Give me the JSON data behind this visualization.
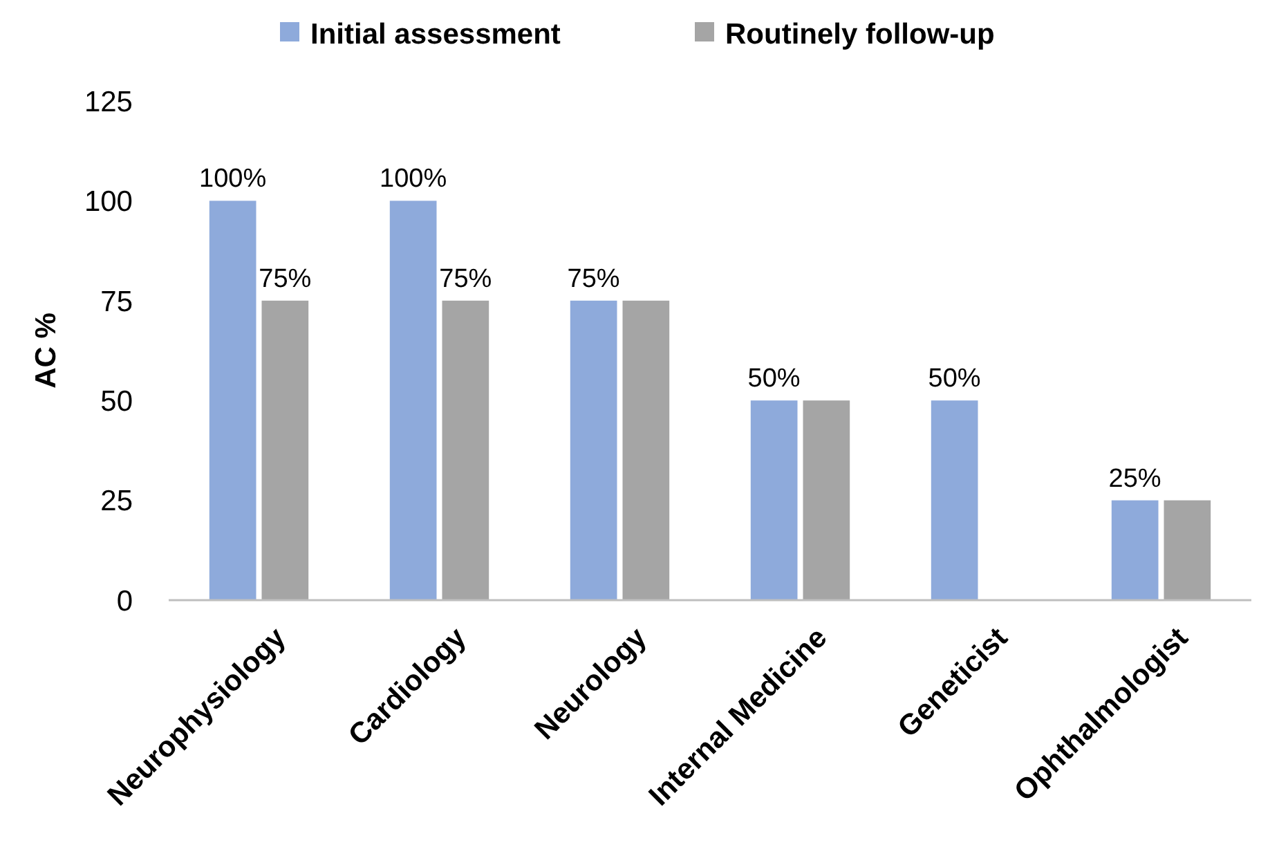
{
  "chart_data": {
    "type": "bar",
    "ylabel": "AC %",
    "categories": [
      "Neurophysiology",
      "Cardiology",
      "Neurology",
      "Internal Medicine",
      "Geneticist",
      "Ophthalmologist"
    ],
    "series": [
      {
        "name": "Initial assessment",
        "color": "#8eaadb",
        "values": [
          100,
          100,
          75,
          50,
          50,
          25
        ],
        "value_labels": [
          "100%",
          "100%",
          "75%",
          "50%",
          "50%",
          "25%"
        ]
      },
      {
        "name": "Routinely follow-up",
        "color": "#a5a5a5",
        "values": [
          75,
          75,
          75,
          50,
          null,
          25
        ],
        "value_labels": [
          "75%",
          "75%",
          null,
          null,
          null,
          null
        ]
      }
    ],
    "ylim": [
      0,
      125
    ],
    "yticks": [
      0,
      25,
      50,
      75,
      100,
      125
    ],
    "grid": false,
    "legend": "top"
  }
}
